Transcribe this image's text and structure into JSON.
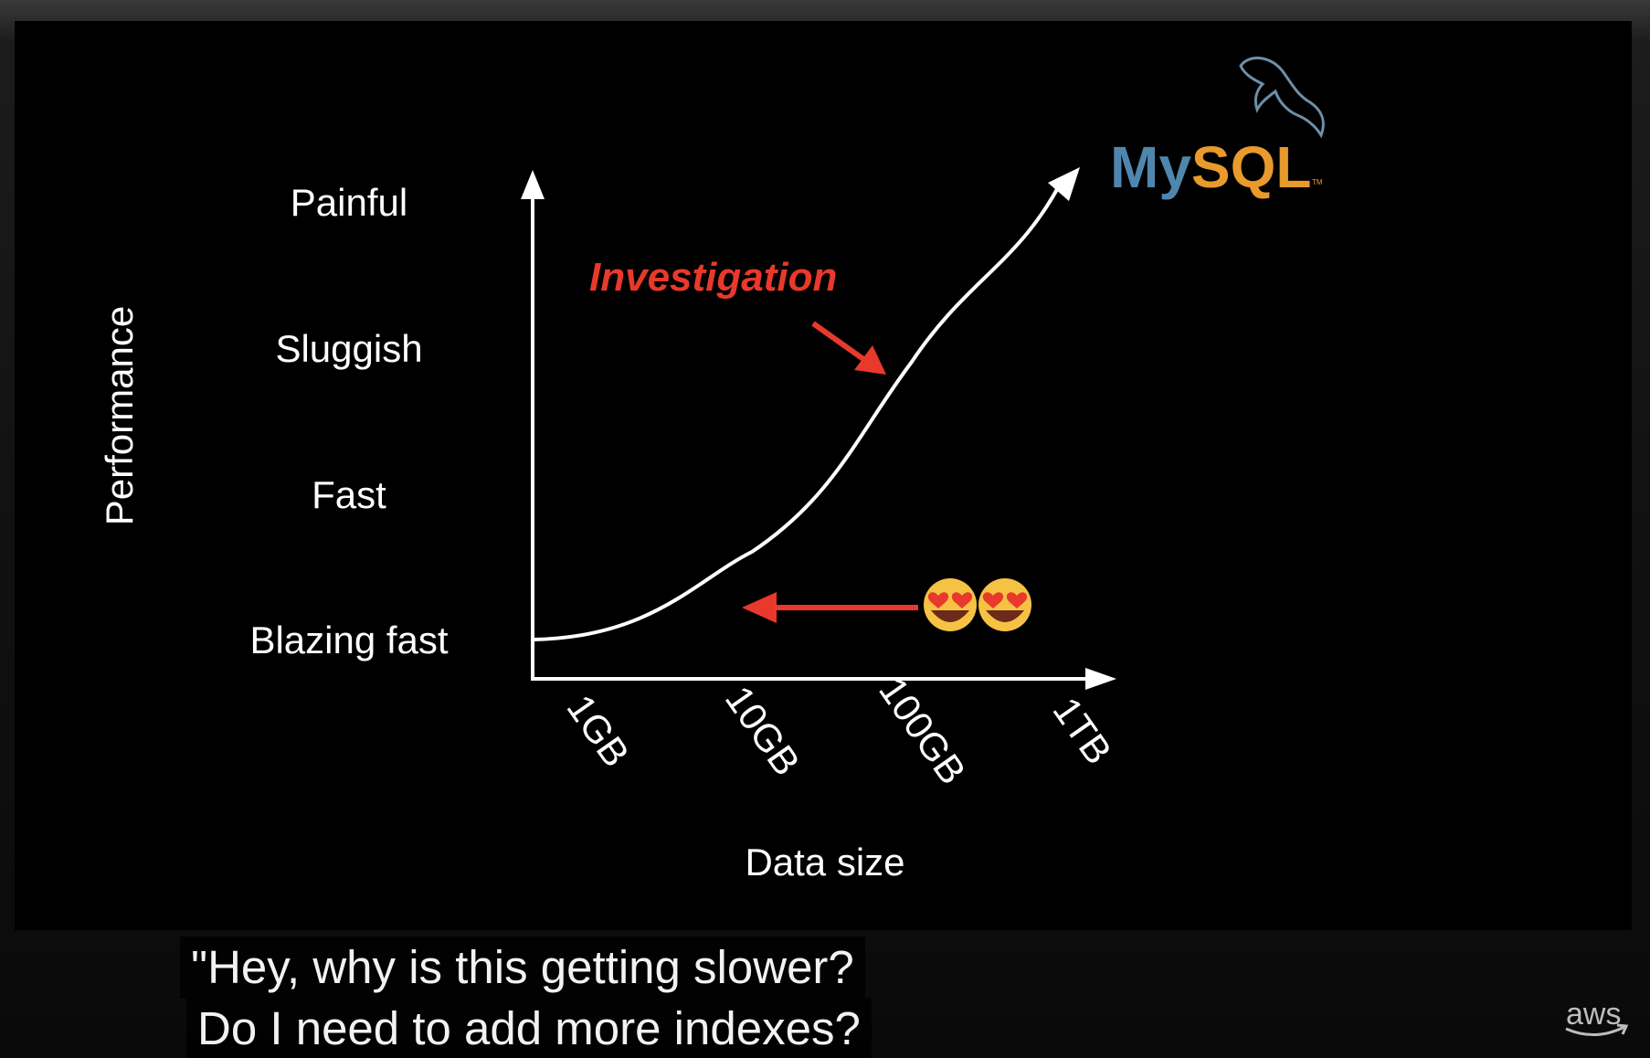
{
  "slide": {
    "y_axis_title": "Performance",
    "x_axis_title": "Data size",
    "annotation": "Investigation",
    "logo_text_my": "My",
    "logo_text_sql": "SQL",
    "logo_tm": "TM",
    "emoji": "😍😍"
  },
  "chart_data": {
    "type": "line",
    "title": "",
    "xlabel": "Data size",
    "ylabel": "Performance",
    "x_ticks": [
      "1GB",
      "10GB",
      "100GB",
      "1TB"
    ],
    "y_ticks": [
      "Blazing fast",
      "Fast",
      "Sluggish",
      "Painful"
    ],
    "series": [
      {
        "x": [
          "1GB",
          "10GB",
          "100GB",
          "1TB"
        ],
        "y": [
          0.0,
          0.6,
          1.9,
          3.0
        ]
      }
    ],
    "colors": {
      "curve": "#ffffff",
      "annotation": "#e8392c",
      "arrow_left": "#e8392c"
    }
  },
  "captions": {
    "line1": "\"Hey, why is this getting slower?",
    "line2": "Do I need to add more indexes?"
  },
  "branding": {
    "aws": "aws"
  }
}
